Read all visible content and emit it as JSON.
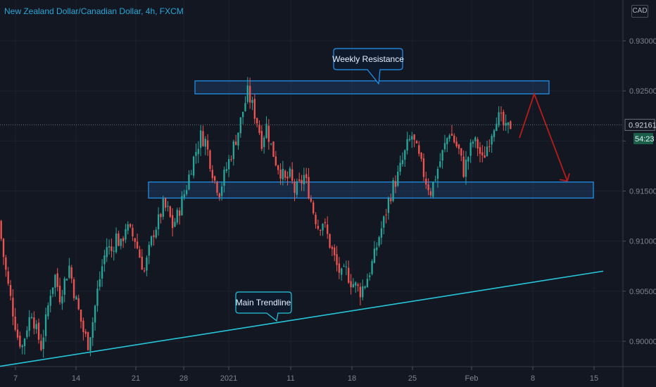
{
  "header": {
    "title": "New Zealand Dollar/Canadian Dollar, 4h, FXCM",
    "currency_badge": "CAD"
  },
  "chart_data": {
    "type": "candlestick",
    "symbol": "New Zealand Dollar/Canadian Dollar, 4h, FXCM",
    "y_axis": {
      "ticks": [
        0.93,
        0.925,
        0.92,
        0.915,
        0.91,
        0.905,
        0.9
      ],
      "tick_labels": [
        "0.93000",
        "0.92500",
        "",
        "0.91500",
        "0.91000",
        "0.90500",
        "0.90000"
      ],
      "ylim": [
        0.8975,
        0.9345
      ]
    },
    "x_axis": {
      "tick_labels": [
        "7",
        "14",
        "21",
        "28",
        "2021",
        "11",
        "18",
        "25",
        "Feb",
        "8",
        "15"
      ]
    },
    "last_price": "0.92161",
    "countdown": "54:23",
    "zones": [
      {
        "label": "Weekly Resistance",
        "y_low": 0.9247,
        "y_high": 0.926
      },
      {
        "label": "",
        "y_low": 0.9143,
        "y_high": 0.9159
      }
    ],
    "trendline": {
      "label": "Main Trendline",
      "y_start": 0.8975,
      "y_end": 0.907
    },
    "projection": {
      "path": [
        0.9203,
        0.9247,
        0.916
      ]
    },
    "price_path": [
      0.912,
      0.9085,
      0.9055,
      0.903,
      0.9005,
      0.8995,
      0.9015,
      0.903,
      0.901,
      0.8995,
      0.902,
      0.905,
      0.9065,
      0.9045,
      0.906,
      0.9075,
      0.905,
      0.903,
      0.901,
      0.8998,
      0.902,
      0.905,
      0.9075,
      0.9095,
      0.909,
      0.9105,
      0.9095,
      0.9115,
      0.9108,
      0.9102,
      0.9085,
      0.907,
      0.909,
      0.911,
      0.912,
      0.9135,
      0.913,
      0.9115,
      0.9125,
      0.914,
      0.9155,
      0.9175,
      0.919,
      0.9205,
      0.92,
      0.918,
      0.916,
      0.915,
      0.9165,
      0.918,
      0.9195,
      0.921,
      0.923,
      0.9248,
      0.9235,
      0.922,
      0.92,
      0.9215,
      0.9195,
      0.918,
      0.917,
      0.916,
      0.9165,
      0.915,
      0.9155,
      0.9165,
      0.915,
      0.913,
      0.9115,
      0.912,
      0.9105,
      0.909,
      0.9075,
      0.9065,
      0.907,
      0.906,
      0.9055,
      0.905,
      0.9058,
      0.907,
      0.9085,
      0.9105,
      0.912,
      0.914,
      0.9155,
      0.9165,
      0.918,
      0.9195,
      0.9205,
      0.919,
      0.9175,
      0.916,
      0.915,
      0.9165,
      0.918,
      0.9195,
      0.921,
      0.92,
      0.919,
      0.917,
      0.9185,
      0.92,
      0.9195,
      0.918,
      0.9195,
      0.921,
      0.9225,
      0.922,
      0.921,
      0.9216
    ]
  },
  "annotations": {
    "resistance_label": "Weekly Resistance",
    "trendline_label": "Main Trendline"
  },
  "colors": {
    "background": "#131722",
    "up": "#26a69a",
    "down": "#ef5350",
    "zone_stroke": "#2196f3",
    "zone_fill": "#1e3a5f",
    "trendline": "#26c6da",
    "projection": "#b71c1c",
    "title": "#2aa6d6"
  }
}
